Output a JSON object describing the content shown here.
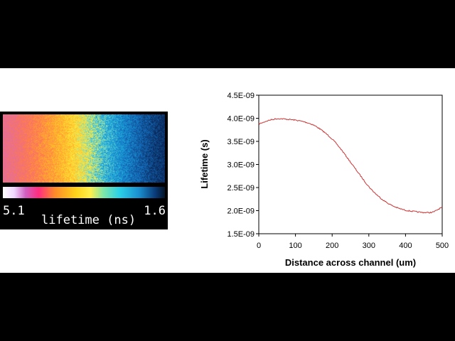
{
  "image_panel": {
    "colorbar_min": "5.1",
    "colorbar_max": "1.6",
    "colorbar_label": "lifetime (ns)"
  },
  "colors": {
    "background": "#000000",
    "panel": "#ffffff",
    "line": "#cc3333"
  },
  "chart_data": {
    "type": "line",
    "title": "",
    "xlabel": "Distance across channel (um)",
    "ylabel": "Lifetime (s)",
    "xlim": [
      0,
      500
    ],
    "ylim": [
      1.5e-09,
      4.5e-09
    ],
    "x_ticks": [
      "0",
      "100",
      "200",
      "300",
      "400",
      "500"
    ],
    "y_ticks": [
      "1.5E-09",
      "2.0E-09",
      "2.5E-09",
      "3.0E-09",
      "3.5E-09",
      "4.0E-09",
      "4.5E-09"
    ],
    "grid": false,
    "legend": "none",
    "series": [
      {
        "x": [
          0,
          25,
          50,
          75,
          100,
          125,
          150,
          175,
          200,
          225,
          250,
          275,
          300,
          325,
          350,
          375,
          400,
          425,
          450,
          475,
          500
        ],
        "values": [
          3.88e-09,
          3.95e-09,
          3.99e-09,
          3.98e-09,
          3.96e-09,
          3.92e-09,
          3.85e-09,
          3.72e-09,
          3.55e-09,
          3.32e-09,
          3.05e-09,
          2.78e-09,
          2.52e-09,
          2.32e-09,
          2.17e-09,
          2.07e-09,
          2.01e-09,
          1.98e-09,
          1.96e-09,
          1.97e-09,
          2.07e-09
        ]
      }
    ]
  }
}
